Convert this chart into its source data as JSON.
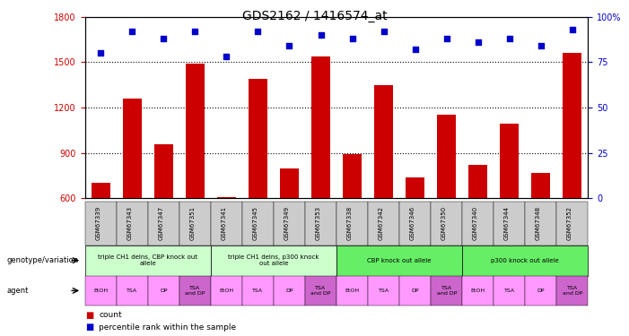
{
  "title": "GDS2162 / 1416574_at",
  "samples": [
    "GSM67339",
    "GSM67343",
    "GSM67347",
    "GSM67351",
    "GSM67341",
    "GSM67345",
    "GSM67349",
    "GSM67353",
    "GSM67338",
    "GSM67342",
    "GSM67346",
    "GSM67350",
    "GSM67340",
    "GSM67344",
    "GSM67348",
    "GSM67352"
  ],
  "counts": [
    700,
    1260,
    960,
    1490,
    610,
    1390,
    800,
    1540,
    890,
    1350,
    735,
    1155,
    820,
    1095,
    770,
    1560
  ],
  "percentiles": [
    80,
    92,
    88,
    92,
    78,
    92,
    84,
    90,
    88,
    92,
    82,
    88,
    86,
    88,
    84,
    93
  ],
  "ylim_left": [
    600,
    1800
  ],
  "ylim_right": [
    0,
    100
  ],
  "yticks_left": [
    600,
    900,
    1200,
    1500,
    1800
  ],
  "yticks_right": [
    0,
    25,
    50,
    75,
    100
  ],
  "bar_color": "#cc0000",
  "dot_color": "#0000cc",
  "genotype_groups": [
    {
      "label": "triple CH1 delns, CBP knock out\nallele",
      "start": 0,
      "end": 4,
      "color": "#ccffcc"
    },
    {
      "label": "triple CH1 delns, p300 knock\nout allele",
      "start": 4,
      "end": 8,
      "color": "#ccffcc"
    },
    {
      "label": "CBP knock out allele",
      "start": 8,
      "end": 12,
      "color": "#66ee66"
    },
    {
      "label": "p300 knock out allele",
      "start": 12,
      "end": 16,
      "color": "#66ee66"
    }
  ],
  "agent_labels": [
    "EtOH",
    "TSA",
    "DP",
    "TSA\nand DP",
    "EtOH",
    "TSA",
    "DP",
    "TSA\nand DP",
    "EtOH",
    "TSA",
    "DP",
    "TSA\nand DP",
    "EtOH",
    "TSA",
    "DP",
    "TSA\nand DP"
  ],
  "agent_colors": [
    "#ff99ff",
    "#ff99ff",
    "#ff99ff",
    "#cc66cc",
    "#ff99ff",
    "#ff99ff",
    "#ff99ff",
    "#cc66cc",
    "#ff99ff",
    "#ff99ff",
    "#ff99ff",
    "#cc66cc",
    "#ff99ff",
    "#ff99ff",
    "#ff99ff",
    "#cc66cc"
  ],
  "legend_count_color": "#cc0000",
  "legend_dot_color": "#0000cc",
  "bg_color": "#ffffff",
  "sample_bg_color": "#cccccc",
  "gridline_values": [
    900,
    1200,
    1500
  ],
  "right_tick_suffix": [
    false,
    false,
    false,
    false,
    true
  ]
}
